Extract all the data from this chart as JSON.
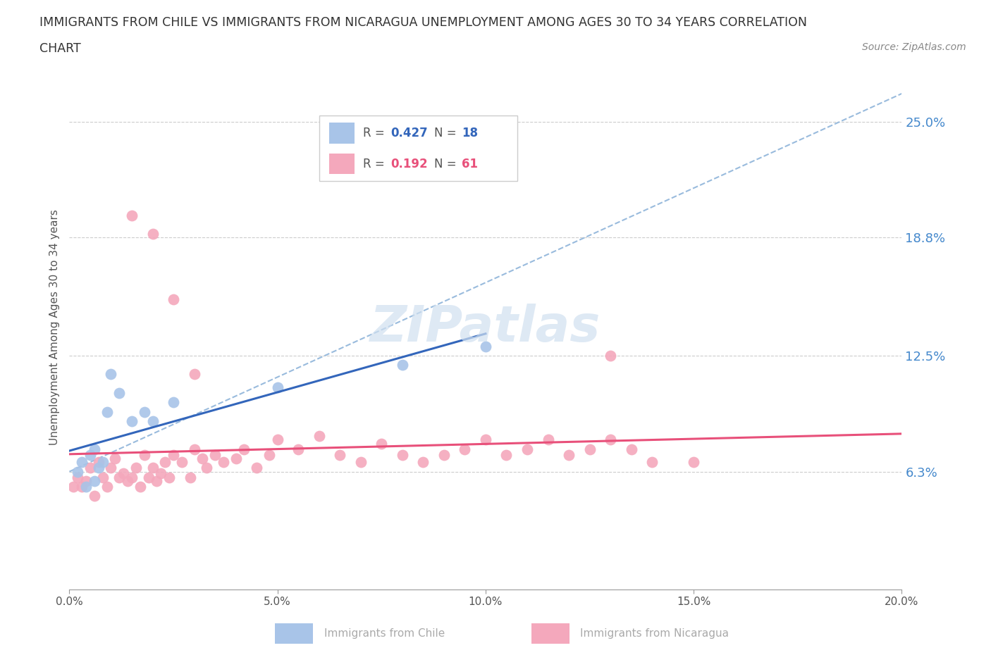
{
  "title_line1": "IMMIGRANTS FROM CHILE VS IMMIGRANTS FROM NICARAGUA UNEMPLOYMENT AMONG AGES 30 TO 34 YEARS CORRELATION",
  "title_line2": "CHART",
  "source": "Source: ZipAtlas.com",
  "ylabel": "Unemployment Among Ages 30 to 34 years",
  "xlim": [
    0.0,
    0.2
  ],
  "ylim": [
    0.0,
    0.28
  ],
  "ytick_values": [
    0.063,
    0.125,
    0.188,
    0.25
  ],
  "ytick_labels": [
    "6.3%",
    "12.5%",
    "18.8%",
    "25.0%"
  ],
  "xtick_values": [
    0.0,
    0.05,
    0.1,
    0.15,
    0.2
  ],
  "xtick_labels": [
    "0.0%",
    "5.0%",
    "10.0%",
    "15.0%",
    "20.0%"
  ],
  "chile_R": 0.427,
  "chile_N": 18,
  "nicaragua_R": 0.192,
  "nicaragua_N": 61,
  "chile_color": "#a8c4e8",
  "nicaragua_color": "#f4a8bc",
  "chile_line_color": "#3366bb",
  "nicaragua_line_color": "#e8507a",
  "dashed_line_color": "#99bbdd",
  "watermark_color": "#d0e0f0",
  "grid_color": "#cccccc",
  "right_label_color": "#4488cc",
  "title_color": "#333333",
  "axis_color": "#999999",
  "legend_border_color": "#cccccc",
  "bottom_legend_color": "#aaaaaa",
  "chile_scatter_x": [
    0.002,
    0.003,
    0.004,
    0.005,
    0.006,
    0.006,
    0.007,
    0.008,
    0.009,
    0.01,
    0.012,
    0.015,
    0.018,
    0.02,
    0.025,
    0.05,
    0.08,
    0.1
  ],
  "chile_scatter_y": [
    0.063,
    0.068,
    0.055,
    0.072,
    0.058,
    0.075,
    0.065,
    0.068,
    0.095,
    0.115,
    0.105,
    0.09,
    0.095,
    0.09,
    0.1,
    0.108,
    0.12,
    0.13
  ],
  "nicaragua_scatter_x": [
    0.001,
    0.002,
    0.003,
    0.004,
    0.005,
    0.006,
    0.007,
    0.008,
    0.009,
    0.01,
    0.011,
    0.012,
    0.013,
    0.014,
    0.015,
    0.016,
    0.017,
    0.018,
    0.019,
    0.02,
    0.021,
    0.022,
    0.023,
    0.024,
    0.025,
    0.027,
    0.029,
    0.03,
    0.032,
    0.033,
    0.035,
    0.037,
    0.04,
    0.042,
    0.045,
    0.048,
    0.05,
    0.055,
    0.06,
    0.065,
    0.07,
    0.075,
    0.08,
    0.085,
    0.09,
    0.095,
    0.1,
    0.105,
    0.11,
    0.115,
    0.12,
    0.125,
    0.13,
    0.135,
    0.14,
    0.15,
    0.015,
    0.02,
    0.025,
    0.03,
    0.13
  ],
  "nicaragua_scatter_y": [
    0.055,
    0.06,
    0.055,
    0.058,
    0.065,
    0.05,
    0.068,
    0.06,
    0.055,
    0.065,
    0.07,
    0.06,
    0.062,
    0.058,
    0.06,
    0.065,
    0.055,
    0.072,
    0.06,
    0.065,
    0.058,
    0.062,
    0.068,
    0.06,
    0.072,
    0.068,
    0.06,
    0.075,
    0.07,
    0.065,
    0.072,
    0.068,
    0.07,
    0.075,
    0.065,
    0.072,
    0.08,
    0.075,
    0.082,
    0.072,
    0.068,
    0.078,
    0.072,
    0.068,
    0.072,
    0.075,
    0.08,
    0.072,
    0.075,
    0.08,
    0.072,
    0.075,
    0.08,
    0.075,
    0.068,
    0.068,
    0.2,
    0.19,
    0.155,
    0.115,
    0.125
  ],
  "dashed_line_x0": 0.0,
  "dashed_line_y0": 0.063,
  "dashed_line_x1": 0.2,
  "dashed_line_y1": 0.265,
  "chile_line_x0": 0.0,
  "chile_line_x1": 0.1,
  "nicaragua_line_x0": 0.0,
  "nicaragua_line_x1": 0.2
}
